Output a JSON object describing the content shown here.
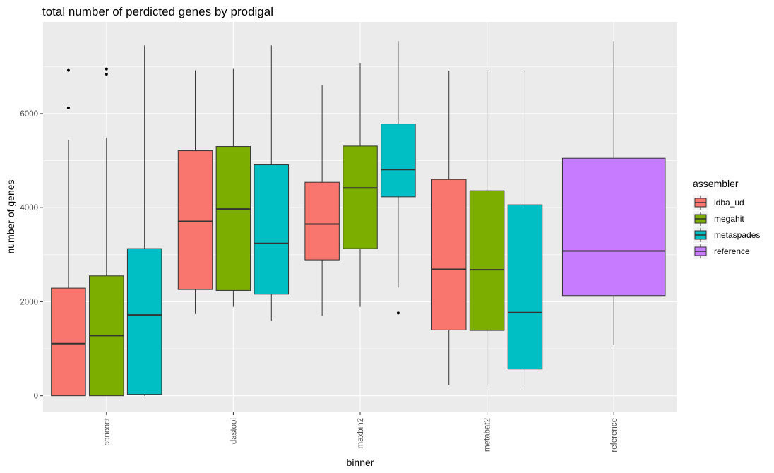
{
  "chart_data": {
    "type": "boxplot",
    "title": "total number of perdicted genes by prodigal",
    "xlabel": "binner",
    "ylabel": "number of genes",
    "categories": [
      "concoct",
      "dastool",
      "maxbin2",
      "metabat2",
      "reference"
    ],
    "ylim": [
      -350,
      7950
    ],
    "yticks": [
      0,
      2000,
      4000,
      6000
    ],
    "grid": true,
    "legend": {
      "title": "assembler",
      "position": "right",
      "entries": [
        "idba_ud",
        "megahit",
        "metaspades",
        "reference"
      ]
    },
    "colors": {
      "idba_ud": "#F8766D",
      "megahit": "#7CAE00",
      "metaspades": "#00BFC4",
      "reference": "#C77CFF",
      "panel": "#EBEBEB",
      "grid": "#FFFFFF"
    },
    "series": [
      {
        "name": "idba_ud",
        "boxes": [
          {
            "category": "concoct",
            "min": 0,
            "q1": 0,
            "median": 1110,
            "q3": 2290,
            "max": 5440,
            "outliers": [
              6120,
              6920
            ]
          },
          {
            "category": "dastool",
            "min": 1740,
            "q1": 2260,
            "median": 3710,
            "q3": 5210,
            "max": 6920,
            "outliers": []
          },
          {
            "category": "maxbin2",
            "min": 1700,
            "q1": 2890,
            "median": 3650,
            "q3": 4540,
            "max": 6610,
            "outliers": []
          },
          {
            "category": "metabat2",
            "min": 230,
            "q1": 1400,
            "median": 2690,
            "q3": 4600,
            "max": 6910,
            "outliers": []
          }
        ]
      },
      {
        "name": "megahit",
        "boxes": [
          {
            "category": "concoct",
            "min": 0,
            "q1": 0,
            "median": 1280,
            "q3": 2550,
            "max": 5490,
            "outliers": [
              6840,
              6950
            ]
          },
          {
            "category": "dastool",
            "min": 1890,
            "q1": 2240,
            "median": 3970,
            "q3": 5300,
            "max": 6950,
            "outliers": []
          },
          {
            "category": "maxbin2",
            "min": 1890,
            "q1": 3130,
            "median": 4420,
            "q3": 5310,
            "max": 7080,
            "outliers": []
          },
          {
            "category": "metabat2",
            "min": 230,
            "q1": 1390,
            "median": 2680,
            "q3": 4360,
            "max": 6930,
            "outliers": []
          }
        ]
      },
      {
        "name": "metaspades",
        "boxes": [
          {
            "category": "concoct",
            "min": 0,
            "q1": 30,
            "median": 1720,
            "q3": 3130,
            "max": 7450,
            "outliers": []
          },
          {
            "category": "dastool",
            "min": 1600,
            "q1": 2160,
            "median": 3240,
            "q3": 4910,
            "max": 7450,
            "outliers": []
          },
          {
            "category": "maxbin2",
            "min": 2300,
            "q1": 4230,
            "median": 4810,
            "q3": 5780,
            "max": 7540,
            "outliers": [
              1760
            ]
          },
          {
            "category": "metabat2",
            "min": 230,
            "q1": 570,
            "median": 1770,
            "q3": 4060,
            "max": 6900,
            "outliers": []
          }
        ]
      },
      {
        "name": "reference",
        "boxes": [
          {
            "category": "reference",
            "min": 1080,
            "q1": 2130,
            "median": 3080,
            "q3": 5050,
            "max": 7540,
            "outliers": []
          }
        ]
      }
    ]
  }
}
